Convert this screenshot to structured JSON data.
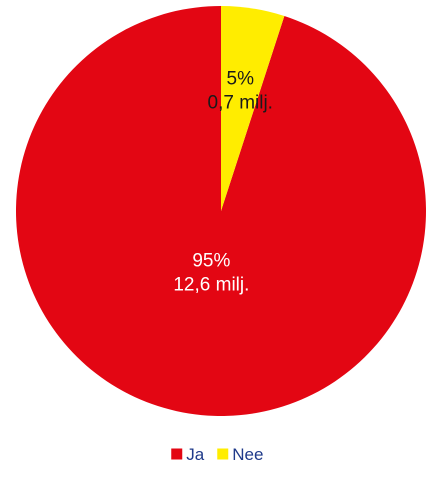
{
  "chart_data": {
    "type": "pie",
    "title": "",
    "legend_position": "bottom-center",
    "start_angle": "top",
    "direction": "counterclockwise",
    "slices": [
      {
        "name": "Ja",
        "value": 95,
        "percent_label": "95%",
        "value_label": "12,6 milj.",
        "color": "#e30613",
        "label_color": "#ffffff"
      },
      {
        "name": "Nee",
        "value": 5,
        "percent_label": "5%",
        "value_label": "0,7 milj.",
        "color": "#ffed00",
        "label_color": "#1a1a1a"
      }
    ]
  }
}
